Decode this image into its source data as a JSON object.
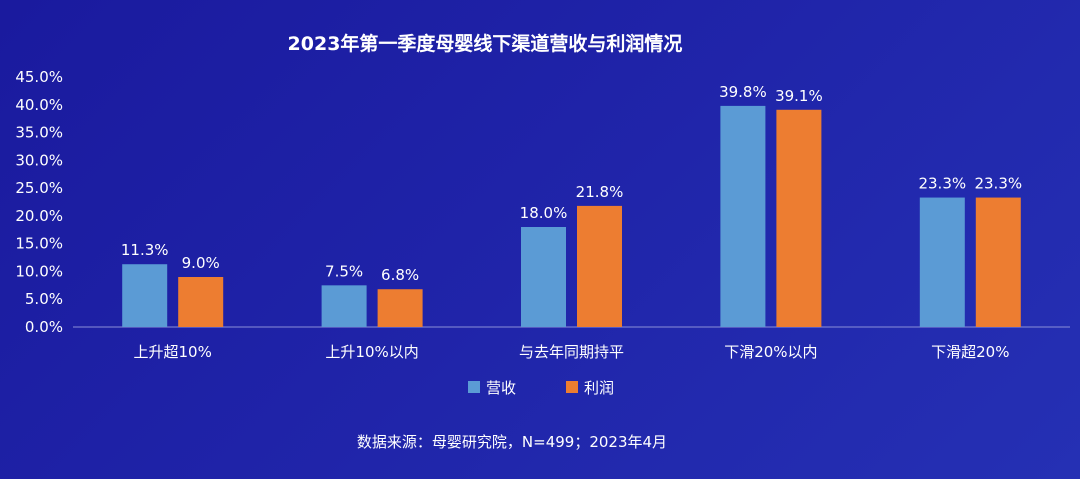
{
  "chart_data": {
    "type": "bar",
    "title": "2023年第一季度母婴线下渠道营收与利润情况",
    "categories": [
      "上升超10%",
      "上升10%以内",
      "与去年同期持平",
      "下滑20%以内",
      "下滑超20%"
    ],
    "series": [
      {
        "name": "营收",
        "color": "#5b9bd5",
        "values": [
          11.3,
          7.5,
          18.0,
          39.8,
          23.3
        ],
        "labels": [
          "11.3%",
          "7.5%",
          "18.0%",
          "39.8%",
          "23.3%"
        ]
      },
      {
        "name": "利润",
        "color": "#ed7d31",
        "values": [
          9.0,
          6.8,
          21.8,
          39.1,
          23.3
        ],
        "labels": [
          "9.0%",
          "6.8%",
          "21.8%",
          "39.1%",
          "23.3%"
        ]
      }
    ],
    "ylim": [
      0,
      45
    ],
    "yticks": [
      "0.0%",
      "5.0%",
      "10.0%",
      "15.0%",
      "20.0%",
      "25.0%",
      "30.0%",
      "35.0%",
      "40.0%",
      "45.0%"
    ],
    "legend_position": "bottom",
    "grid": false
  },
  "source_note": "数据来源：母婴研究院，N=499；2023年4月"
}
